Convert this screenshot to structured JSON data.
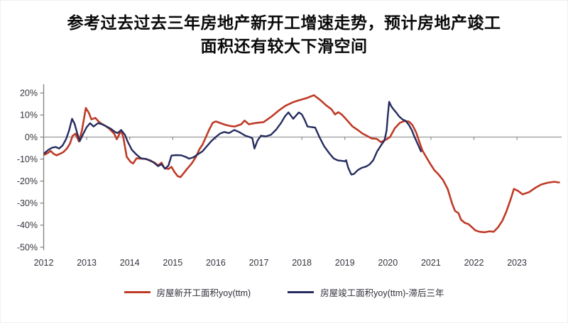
{
  "title": {
    "line1": "参考过去过去三年房地产新开工增速走势，预计房地产竣工",
    "line2": "面积还有较大下滑空间"
  },
  "chart_data": {
    "type": "line",
    "title": "参考过去过去三年房地产新开工增速走势，预计房地产竣工面积还有较大下滑空间",
    "xlabel": "",
    "ylabel": "",
    "ylim": [
      -50,
      20
    ],
    "xlim": [
      2012,
      2024
    ],
    "grid": "zero-line-only",
    "legend_position": "bottom",
    "axis_color": "#7f7f7f",
    "zero_line_color": "#a8a8a8",
    "tick_label_color": "#34343f",
    "y_axis": {
      "unit": "%",
      "tick_values": [
        20,
        10,
        0,
        -10,
        -20,
        -30,
        -40,
        -50
      ]
    },
    "x_axis": {
      "labels": [
        "2012",
        "2013",
        "2014",
        "2015",
        "2016",
        "2017",
        "2018",
        "2019",
        "2020",
        "2021",
        "2022",
        "2023"
      ]
    },
    "series": [
      {
        "name": "房屋新开工面积yoy(ttm)",
        "color": "#bf3a27",
        "width": 2.6,
        "points": [
          [
            2012.02,
            -8.0
          ],
          [
            2012.1,
            -7.2
          ],
          [
            2012.16,
            -6.3
          ],
          [
            2012.23,
            -7.6
          ],
          [
            2012.3,
            -8.3
          ],
          [
            2012.38,
            -7.6
          ],
          [
            2012.46,
            -6.8
          ],
          [
            2012.54,
            -5.2
          ],
          [
            2012.61,
            -3.0
          ],
          [
            2012.67,
            0.5
          ],
          [
            2012.74,
            1.5
          ],
          [
            2012.82,
            -2.0
          ],
          [
            2012.89,
            3.0
          ],
          [
            2012.98,
            13.2
          ],
          [
            2013.05,
            11.0
          ],
          [
            2013.11,
            8.0
          ],
          [
            2013.2,
            8.7
          ],
          [
            2013.28,
            7.0
          ],
          [
            2013.34,
            6.1
          ],
          [
            2013.44,
            5.0
          ],
          [
            2013.52,
            3.9
          ],
          [
            2013.59,
            2.5
          ],
          [
            2013.64,
            1.5
          ],
          [
            2013.7,
            -1.0
          ],
          [
            2013.8,
            2.9
          ],
          [
            2013.85,
            0.0
          ],
          [
            2013.93,
            -9.0
          ],
          [
            2014.02,
            -11.3
          ],
          [
            2014.08,
            -12.0
          ],
          [
            2014.16,
            -9.6
          ],
          [
            2014.26,
            -9.8
          ],
          [
            2014.38,
            -9.9
          ],
          [
            2014.49,
            -10.9
          ],
          [
            2014.57,
            -11.5
          ],
          [
            2014.66,
            -12.9
          ],
          [
            2014.74,
            -11.6
          ],
          [
            2014.8,
            -13.9
          ],
          [
            2014.9,
            -14.5
          ],
          [
            2014.97,
            -13.5
          ],
          [
            2015.03,
            -15.5
          ],
          [
            2015.11,
            -17.7
          ],
          [
            2015.18,
            -18.2
          ],
          [
            2015.25,
            -16.5
          ],
          [
            2015.33,
            -14.5
          ],
          [
            2015.44,
            -12.0
          ],
          [
            2015.54,
            -9.0
          ],
          [
            2015.62,
            -5.5
          ],
          [
            2015.69,
            -3.5
          ],
          [
            2015.77,
            0.0
          ],
          [
            2015.85,
            3.5
          ],
          [
            2015.93,
            6.5
          ],
          [
            2016.0,
            7.1
          ],
          [
            2016.11,
            6.3
          ],
          [
            2016.23,
            5.5
          ],
          [
            2016.34,
            5.0
          ],
          [
            2016.44,
            4.8
          ],
          [
            2016.59,
            5.8
          ],
          [
            2016.67,
            7.5
          ],
          [
            2016.77,
            5.8
          ],
          [
            2016.87,
            6.2
          ],
          [
            2016.97,
            6.5
          ],
          [
            2017.11,
            6.8
          ],
          [
            2017.3,
            9.4
          ],
          [
            2017.46,
            12.0
          ],
          [
            2017.62,
            14.2
          ],
          [
            2017.79,
            15.8
          ],
          [
            2017.95,
            16.8
          ],
          [
            2018.11,
            17.7
          ],
          [
            2018.28,
            19.0
          ],
          [
            2018.43,
            16.8
          ],
          [
            2018.56,
            14.5
          ],
          [
            2018.69,
            12.6
          ],
          [
            2018.77,
            10.3
          ],
          [
            2018.85,
            11.3
          ],
          [
            2018.93,
            10.2
          ],
          [
            2019.05,
            7.7
          ],
          [
            2019.18,
            4.8
          ],
          [
            2019.3,
            3.2
          ],
          [
            2019.41,
            1.6
          ],
          [
            2019.51,
            0.6
          ],
          [
            2019.62,
            -0.6
          ],
          [
            2019.74,
            -0.8
          ],
          [
            2019.84,
            -2.3
          ],
          [
            2019.95,
            -1.2
          ],
          [
            2020.05,
            0.0
          ],
          [
            2020.16,
            4.0
          ],
          [
            2020.28,
            6.5
          ],
          [
            2020.39,
            7.3
          ],
          [
            2020.49,
            7.0
          ],
          [
            2020.57,
            5.5
          ],
          [
            2020.66,
            2.0
          ],
          [
            2020.72,
            -1.5
          ],
          [
            2020.8,
            -6.0
          ],
          [
            2020.89,
            -9.0
          ],
          [
            2020.98,
            -12.0
          ],
          [
            2021.08,
            -15.0
          ],
          [
            2021.18,
            -17.0
          ],
          [
            2021.28,
            -19.5
          ],
          [
            2021.39,
            -23.5
          ],
          [
            2021.49,
            -30.0
          ],
          [
            2021.56,
            -33.5
          ],
          [
            2021.64,
            -34.5
          ],
          [
            2021.7,
            -37.5
          ],
          [
            2021.79,
            -39.0
          ],
          [
            2021.87,
            -39.5
          ],
          [
            2021.93,
            -40.5
          ],
          [
            2022.03,
            -42.3
          ],
          [
            2022.13,
            -43.0
          ],
          [
            2022.25,
            -43.2
          ],
          [
            2022.36,
            -42.8
          ],
          [
            2022.46,
            -43.0
          ],
          [
            2022.56,
            -41.0
          ],
          [
            2022.66,
            -38.0
          ],
          [
            2022.75,
            -34.0
          ],
          [
            2022.85,
            -28.5
          ],
          [
            2022.93,
            -23.5
          ],
          [
            2023.03,
            -24.5
          ],
          [
            2023.13,
            -26.0
          ],
          [
            2023.28,
            -25.0
          ],
          [
            2023.43,
            -23.0
          ],
          [
            2023.57,
            -21.5
          ],
          [
            2023.72,
            -20.7
          ],
          [
            2023.87,
            -20.3
          ],
          [
            2023.98,
            -20.6
          ]
        ]
      },
      {
        "name": "房屋竣工面积yoy(ttm)-滞后三年",
        "color": "#252c5e",
        "width": 2.4,
        "points": [
          [
            2012.02,
            -7.3
          ],
          [
            2012.11,
            -5.8
          ],
          [
            2012.2,
            -4.8
          ],
          [
            2012.28,
            -4.5
          ],
          [
            2012.36,
            -5.2
          ],
          [
            2012.44,
            -3.8
          ],
          [
            2012.52,
            -1.0
          ],
          [
            2012.59,
            3.0
          ],
          [
            2012.66,
            8.3
          ],
          [
            2012.72,
            6.0
          ],
          [
            2012.79,
            1.0
          ],
          [
            2012.84,
            -1.8
          ],
          [
            2012.92,
            1.5
          ],
          [
            2013.0,
            4.5
          ],
          [
            2013.08,
            6.3
          ],
          [
            2013.16,
            4.8
          ],
          [
            2013.26,
            6.3
          ],
          [
            2013.36,
            5.8
          ],
          [
            2013.46,
            4.8
          ],
          [
            2013.56,
            3.8
          ],
          [
            2013.66,
            2.3
          ],
          [
            2013.72,
            1.8
          ],
          [
            2013.8,
            3.2
          ],
          [
            2013.89,
            1.0
          ],
          [
            2013.95,
            -2.0
          ],
          [
            2014.05,
            -5.8
          ],
          [
            2014.16,
            -8.0
          ],
          [
            2014.26,
            -9.6
          ],
          [
            2014.38,
            -10.0
          ],
          [
            2014.48,
            -10.6
          ],
          [
            2014.56,
            -11.6
          ],
          [
            2014.66,
            -13.2
          ],
          [
            2014.74,
            -12.3
          ],
          [
            2014.82,
            -14.4
          ],
          [
            2014.9,
            -13.0
          ],
          [
            2014.97,
            -8.4
          ],
          [
            2015.08,
            -8.2
          ],
          [
            2015.2,
            -8.3
          ],
          [
            2015.3,
            -9.0
          ],
          [
            2015.38,
            -9.8
          ],
          [
            2015.48,
            -9.2
          ],
          [
            2015.57,
            -8.0
          ],
          [
            2015.69,
            -6.5
          ],
          [
            2015.79,
            -4.2
          ],
          [
            2015.89,
            -2.0
          ],
          [
            2015.98,
            -0.3
          ],
          [
            2016.1,
            1.6
          ],
          [
            2016.2,
            2.3
          ],
          [
            2016.31,
            1.8
          ],
          [
            2016.43,
            3.2
          ],
          [
            2016.54,
            2.3
          ],
          [
            2016.69,
            0.6
          ],
          [
            2016.79,
            0.0
          ],
          [
            2016.85,
            -0.5
          ],
          [
            2016.9,
            -5.2
          ],
          [
            2016.97,
            -1.6
          ],
          [
            2017.05,
            0.6
          ],
          [
            2017.16,
            0.3
          ],
          [
            2017.28,
            1.0
          ],
          [
            2017.41,
            3.5
          ],
          [
            2017.52,
            6.5
          ],
          [
            2017.61,
            9.5
          ],
          [
            2017.69,
            11.2
          ],
          [
            2017.8,
            8.3
          ],
          [
            2017.93,
            11.2
          ],
          [
            2018.0,
            10.3
          ],
          [
            2018.07,
            7.7
          ],
          [
            2018.13,
            4.8
          ],
          [
            2018.23,
            4.5
          ],
          [
            2018.31,
            4.3
          ],
          [
            2018.41,
            0.0
          ],
          [
            2018.52,
            -4.2
          ],
          [
            2018.64,
            -7.4
          ],
          [
            2018.74,
            -9.7
          ],
          [
            2018.84,
            -10.6
          ],
          [
            2018.93,
            -10.8
          ],
          [
            2019.0,
            -11.0
          ],
          [
            2019.03,
            -10.5
          ],
          [
            2019.08,
            -14.0
          ],
          [
            2019.15,
            -17.0
          ],
          [
            2019.21,
            -16.8
          ],
          [
            2019.3,
            -15.0
          ],
          [
            2019.39,
            -14.0
          ],
          [
            2019.49,
            -13.4
          ],
          [
            2019.57,
            -12.5
          ],
          [
            2019.66,
            -10.5
          ],
          [
            2019.75,
            -6.5
          ],
          [
            2019.85,
            -3.5
          ],
          [
            2019.92,
            -1.5
          ],
          [
            2019.97,
            3.0
          ],
          [
            2020.0,
            10.0
          ],
          [
            2020.03,
            16.0
          ],
          [
            2020.08,
            14.0
          ],
          [
            2020.13,
            12.6
          ],
          [
            2020.2,
            11.0
          ],
          [
            2020.26,
            9.4
          ],
          [
            2020.34,
            8.0
          ],
          [
            2020.41,
            7.4
          ],
          [
            2020.49,
            5.5
          ],
          [
            2020.56,
            3.0
          ],
          [
            2020.62,
            0.0
          ],
          [
            2020.69,
            -3.0
          ],
          [
            2020.77,
            -6.5
          ]
        ]
      }
    ]
  }
}
